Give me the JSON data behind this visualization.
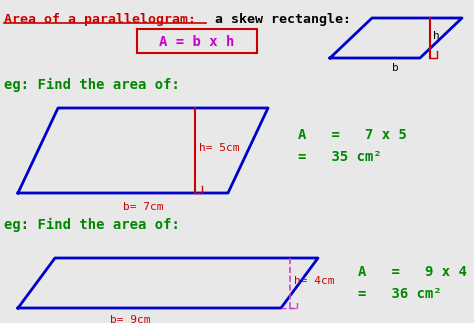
{
  "bg_color": "#e8e8e8",
  "title_underline": "Area of a parallelogram:",
  "title_rest": " a skew rectangle:",
  "title_color_underline": "#cc0000",
  "title_color_rest": "#000000",
  "formula_text": "A = b x h",
  "formula_color": "#cc00cc",
  "formula_box_color": "#cc0000",
  "blue_color": "#0000cc",
  "red_color": "#cc0000",
  "green_color": "#008800",
  "pink_color": "#cc44cc",
  "eg_text": "eg: Find the area of:",
  "calc1_line1": "A   =   7 x 5",
  "calc1_line2": "=   35 cm²",
  "calc2_line1": "A   =   9 x 4",
  "calc2_line2": "=   36 cm²",
  "h1_label": "h= 5cm",
  "b1_label": "b= 7cm",
  "h2_label": "h= 4cm",
  "b2_label": "b= 9cm",
  "h_label_small": "h",
  "b_label_small": "b"
}
